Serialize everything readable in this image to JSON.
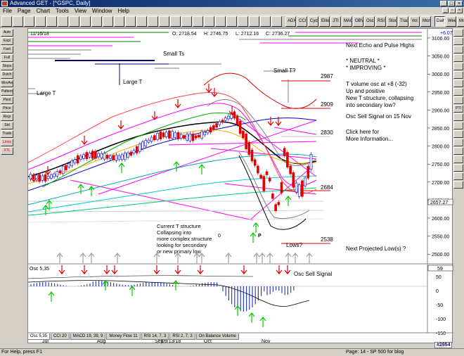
{
  "window": {
    "title": "Advanced GET - [^GSPC, Daily]"
  },
  "menu": [
    "File",
    "Page",
    "Chart",
    "Tools",
    "View",
    "Window",
    "Help"
  ],
  "toolbar": {
    "buttons": [
      "",
      "",
      "",
      "",
      "",
      "",
      "",
      "",
      "",
      "",
      "",
      "",
      "",
      "",
      "",
      "",
      "",
      "",
      "",
      "",
      "",
      "",
      "",
      "",
      "",
      "ADX\nDMI",
      "CCI",
      "Cycles",
      "Elliott\nTrig",
      "JTI",
      "MACD",
      "OBV",
      "Osc",
      "RSI",
      "Stoch",
      "Trade\nPrfl",
      "Vol",
      "Money\nFlow"
    ],
    "period_buttons": [
      "Daily",
      "Weekly",
      "Monthly"
    ],
    "active_period": "Daily"
  },
  "left_tools": [
    "Auto\nTrade",
    "Expl\nFrcst",
    "Fast\nLine",
    "Full\nMenu",
    "Stops",
    "Dutch",
    "MovAvg",
    "Pattern\nIndic",
    "Pivot",
    "Price\nProj",
    "Regr\nChan",
    "Std\nDev",
    "Trade\nProfile",
    "Lines",
    "XTL"
  ],
  "right_tools": [
    "",
    "",
    "",
    "",
    "",
    "",
    "",
    "",
    "",
    "PTI",
    "",
    "",
    "",
    "",
    "",
    "",
    "",
    "",
    ""
  ],
  "quote": {
    "date": "11/16/18",
    "open": "O: 2718.54",
    "high": "H: 2746.75",
    "low": "L: 2712.16",
    "close": "C: 2736.27",
    "change": "+6.07"
  },
  "price_axis": {
    "ticks": [
      "3100.00",
      "3050.00",
      "3000.00",
      "2950.00",
      "2900.00",
      "2850.00",
      "2800.00",
      "2750.00",
      "2700.00",
      "2650.00",
      "2600.00",
      "2550.00",
      "2500.00"
    ],
    "current": "2657.27"
  },
  "annotations": {
    "small_ts": "Small Ts",
    "small_t": "Small T?",
    "large_t_left": "Large T",
    "large_t_mid": "Large T",
    "level_2987": "2987",
    "level_2909": "2909",
    "level_2830": "2830",
    "level_2684": "2684",
    "level_2538": "2538",
    "next_echo": "Next Echo and Pulse Highs",
    "neutral": "* NEUTRAL *",
    "improving": "* IMPROVING *",
    "tvol_1": "T volume osc at +8 (-32)",
    "tvol_2": "Up and positive",
    "tvol_3": "New T structure, collapsing",
    "tvol_4": "into secondary low?",
    "osc_sell": "Osc Sell Signal on 15 Nov",
    "click_1": "Click here for",
    "click_2": "More Information...",
    "struct_1": "Current T structure",
    "struct_2": "Collapsing into",
    "struct_3": "more complex structure",
    "struct_4": "looking for secondary",
    "struct_5": "or new primary low",
    "zero": "0",
    "p_label": "P",
    "lows": "Lows?",
    "next_low": "Next Projected Low(s) ?"
  },
  "oscillator": {
    "title": "Osc 5,35",
    "value": "59",
    "signal": "Osc Sell Signal",
    "ticks": [
      "50",
      "0",
      "-50",
      "-100",
      "-150"
    ]
  },
  "tabs": [
    "Osc 5,35",
    "CCI 20",
    "MACD 19, 39, 9",
    "Money Flow 11",
    "RSI 14, 7, 3",
    "RSI 2, 7, 3",
    "On Balance Volume"
  ],
  "active_tab": "Osc 5,35",
  "time_axis": [
    "Jul",
    "Aug",
    "Sep",
    "09/13/18",
    "Oct",
    "Nov"
  ],
  "status": {
    "left": "For Help, press F1",
    "right": "Page: 14 - SP 500 for blog"
  },
  "symbol_id": "#2954",
  "colors": {
    "bull_candle": "#0000cc",
    "bear_candle": "#e00000",
    "magenta_lines": "#ff00ff",
    "buy_arrow": "#00cc00",
    "sell_arrow": "#e00000",
    "ma_black": "#000000"
  }
}
